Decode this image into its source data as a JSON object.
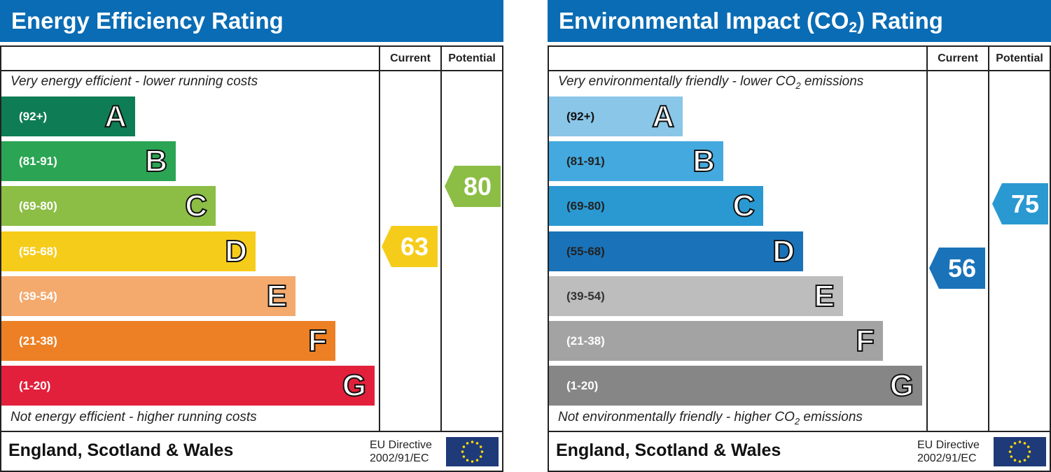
{
  "chart_data": [
    {
      "type": "bar",
      "title": "Energy Efficiency Rating",
      "columns": [
        "Current",
        "Potential"
      ],
      "top_caption": "Very energy efficient - lower running costs",
      "bottom_caption": "Not energy efficient - higher running costs",
      "bands": [
        {
          "letter": "A",
          "range": "(92+)",
          "color": "#0e7d55"
        },
        {
          "letter": "B",
          "range": "(81-91)",
          "color": "#2ba553"
        },
        {
          "letter": "C",
          "range": "(69-80)",
          "color": "#8cbd45"
        },
        {
          "letter": "D",
          "range": "(55-68)",
          "color": "#f6cc1a"
        },
        {
          "letter": "E",
          "range": "(39-54)",
          "color": "#f4a96d"
        },
        {
          "letter": "F",
          "range": "(21-38)",
          "color": "#ed8024"
        },
        {
          "letter": "G",
          "range": "(1-20)",
          "color": "#e2203c"
        }
      ],
      "current": {
        "value": "63",
        "band": "D",
        "color": "#f6cc1a"
      },
      "potential": {
        "value": "80",
        "band": "C",
        "color": "#8cbd45"
      },
      "footer": "England, Scotland & Wales",
      "directive": [
        "EU Directive",
        "2002/91/EC"
      ]
    },
    {
      "type": "bar",
      "title": "Environmental Impact (CO",
      "title_sub": "2",
      "title_end": ") Rating",
      "columns": [
        "Current",
        "Potential"
      ],
      "top_caption": "Very environmentally friendly - lower CO",
      "top_caption_sub": "2",
      "top_caption_end": " emissions",
      "bottom_caption": "Not environmentally friendly - higher CO",
      "bottom_caption_sub": "2",
      "bottom_caption_end": " emissions",
      "bands": [
        {
          "letter": "A",
          "range": "(92+)",
          "color": "#8ac6e8",
          "text": "#111"
        },
        {
          "letter": "B",
          "range": "(81-91)",
          "color": "#44a9de",
          "text": "#222"
        },
        {
          "letter": "C",
          "range": "(69-80)",
          "color": "#2a99d2",
          "text": "#222"
        },
        {
          "letter": "D",
          "range": "(55-68)",
          "color": "#1a73b9",
          "text": "#222"
        },
        {
          "letter": "E",
          "range": "(39-54)",
          "color": "#bdbdbd",
          "text": "#333"
        },
        {
          "letter": "F",
          "range": "(21-38)",
          "color": "#a3a3a3",
          "text": "#fff"
        },
        {
          "letter": "G",
          "range": "(1-20)",
          "color": "#868686",
          "text": "#fff"
        }
      ],
      "current": {
        "value": "56",
        "band": "D",
        "color": "#1a73b9"
      },
      "potential": {
        "value": "75",
        "band": "C",
        "color": "#2a99d2"
      },
      "footer": "England, Scotland & Wales",
      "directive": [
        "EU Directive",
        "2002/91/EC"
      ]
    }
  ]
}
